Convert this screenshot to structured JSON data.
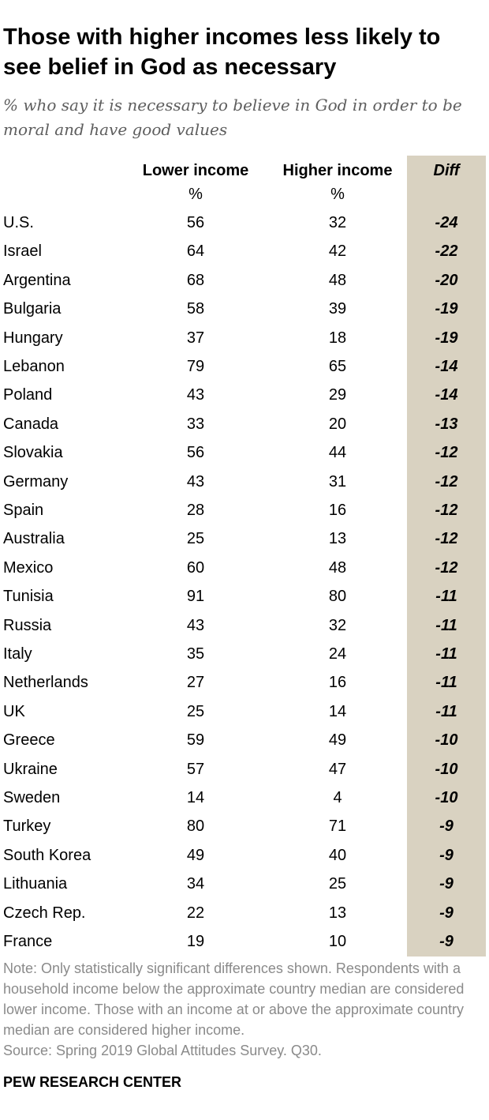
{
  "title": "Those with higher incomes less likely to see belief in God as necessary",
  "subtitle": "% who say it is necessary to believe in God in order to be moral and have good values",
  "colors": {
    "diff_band": "#d9d2c1",
    "note_text": "#8a8a8a",
    "subtitle_text": "#5e5e5e"
  },
  "chart_data": {
    "type": "table",
    "columns": [
      "Lower income",
      "Higher income",
      "Diff"
    ],
    "units": [
      "%",
      "%",
      ""
    ],
    "rows": [
      {
        "country": "U.S.",
        "lower": 56,
        "higher": 32,
        "diff": -24
      },
      {
        "country": "Israel",
        "lower": 64,
        "higher": 42,
        "diff": -22
      },
      {
        "country": "Argentina",
        "lower": 68,
        "higher": 48,
        "diff": -20
      },
      {
        "country": "Bulgaria",
        "lower": 58,
        "higher": 39,
        "diff": -19
      },
      {
        "country": "Hungary",
        "lower": 37,
        "higher": 18,
        "diff": -19
      },
      {
        "country": "Lebanon",
        "lower": 79,
        "higher": 65,
        "diff": -14
      },
      {
        "country": "Poland",
        "lower": 43,
        "higher": 29,
        "diff": -14
      },
      {
        "country": "Canada",
        "lower": 33,
        "higher": 20,
        "diff": -13
      },
      {
        "country": "Slovakia",
        "lower": 56,
        "higher": 44,
        "diff": -12
      },
      {
        "country": "Germany",
        "lower": 43,
        "higher": 31,
        "diff": -12
      },
      {
        "country": "Spain",
        "lower": 28,
        "higher": 16,
        "diff": -12
      },
      {
        "country": "Australia",
        "lower": 25,
        "higher": 13,
        "diff": -12
      },
      {
        "country": "Mexico",
        "lower": 60,
        "higher": 48,
        "diff": -12
      },
      {
        "country": "Tunisia",
        "lower": 91,
        "higher": 80,
        "diff": -11
      },
      {
        "country": "Russia",
        "lower": 43,
        "higher": 32,
        "diff": -11
      },
      {
        "country": "Italy",
        "lower": 35,
        "higher": 24,
        "diff": -11
      },
      {
        "country": "Netherlands",
        "lower": 27,
        "higher": 16,
        "diff": -11
      },
      {
        "country": "UK",
        "lower": 25,
        "higher": 14,
        "diff": -11
      },
      {
        "country": "Greece",
        "lower": 59,
        "higher": 49,
        "diff": -10
      },
      {
        "country": "Ukraine",
        "lower": 57,
        "higher": 47,
        "diff": -10
      },
      {
        "country": "Sweden",
        "lower": 14,
        "higher": 4,
        "diff": -10
      },
      {
        "country": "Turkey",
        "lower": 80,
        "higher": 71,
        "diff": -9
      },
      {
        "country": "South Korea",
        "lower": 49,
        "higher": 40,
        "diff": -9
      },
      {
        "country": "Lithuania",
        "lower": 34,
        "higher": 25,
        "diff": -9
      },
      {
        "country": "Czech Rep.",
        "lower": 22,
        "higher": 13,
        "diff": -9
      },
      {
        "country": "France",
        "lower": 19,
        "higher": 10,
        "diff": -9
      }
    ]
  },
  "note": "Note: Only statistically significant differences shown. Respondents with a household income below the approximate country median are considered lower income. Those with an income at or above the approximate country median are considered higher income.",
  "source": "Source: Spring 2019 Global Attitudes Survey. Q30.",
  "brand": "PEW RESEARCH CENTER"
}
